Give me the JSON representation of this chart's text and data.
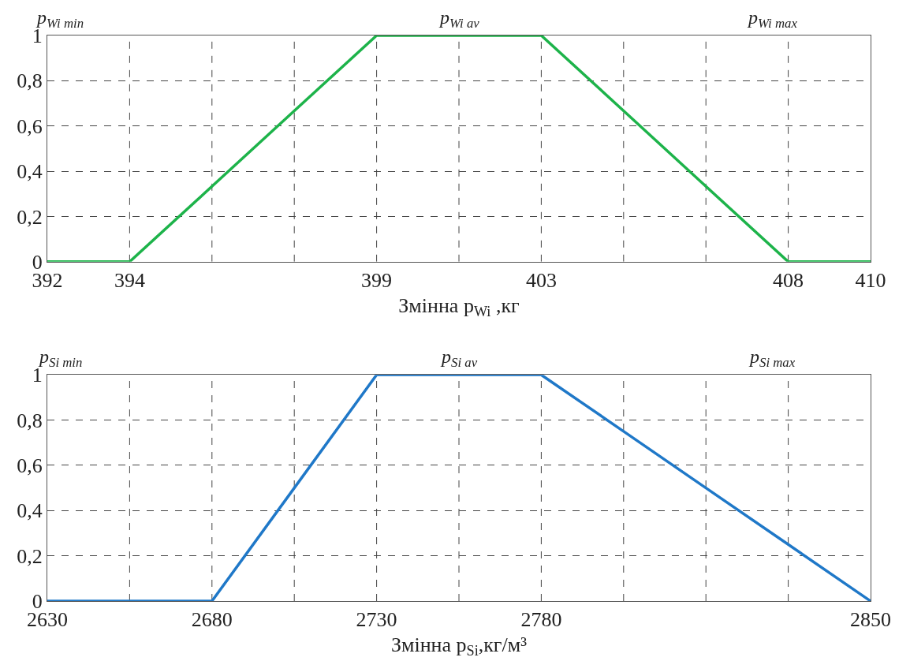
{
  "chart_data": [
    {
      "type": "line",
      "xlabel": "Змінна p$_{Wi}$ ,кг",
      "annotations": [
        "p$_{Wi min}$",
        "p$_{Wi av}$",
        "p$_{Wi max}$"
      ],
      "categories": [
        "392",
        "394",
        null,
        null,
        "399",
        null,
        "403",
        null,
        null,
        "408",
        "410"
      ],
      "series": [
        {
          "color": "#1db34a",
          "values": [
            0,
            0,
            0.333,
            0.667,
            1,
            1,
            1,
            0.667,
            0.333,
            0,
            0
          ]
        }
      ],
      "ylim": [
        0,
        1
      ],
      "yticks": [
        {
          "value": 0,
          "label": "0"
        },
        {
          "value": 0.2,
          "label": "0,2"
        },
        {
          "value": 0.4,
          "label": "0,4"
        },
        {
          "value": 0.6,
          "label": "0,6"
        },
        {
          "value": 0.8,
          "label": "0,8"
        },
        {
          "value": 1,
          "label": "1"
        }
      ],
      "grid": true,
      "line_style": "solid"
    },
    {
      "type": "line",
      "xlabel": "Змінна p$_{Si}$,кг/м³",
      "annotations": [
        "p$_{Si min}$",
        "p$_{Si av}$",
        "p$_{Si max}$"
      ],
      "categories": [
        "2630",
        null,
        "2680",
        null,
        "2730",
        null,
        "2780",
        null,
        null,
        null,
        "2850"
      ],
      "series": [
        {
          "color": "#1f78c8",
          "values": [
            0,
            0,
            0,
            0.5,
            1,
            1,
            1,
            0.75,
            0.5,
            0.25,
            0
          ]
        }
      ],
      "ylim": [
        0,
        1
      ],
      "yticks": [
        {
          "value": 0,
          "label": "0"
        },
        {
          "value": 0.2,
          "label": "0,2"
        },
        {
          "value": 0.4,
          "label": "0,4"
        },
        {
          "value": 0.6,
          "label": "0,6"
        },
        {
          "value": 0.8,
          "label": "0,8"
        },
        {
          "value": 1,
          "label": "1"
        }
      ],
      "grid": true,
      "line_style": "solid"
    }
  ]
}
